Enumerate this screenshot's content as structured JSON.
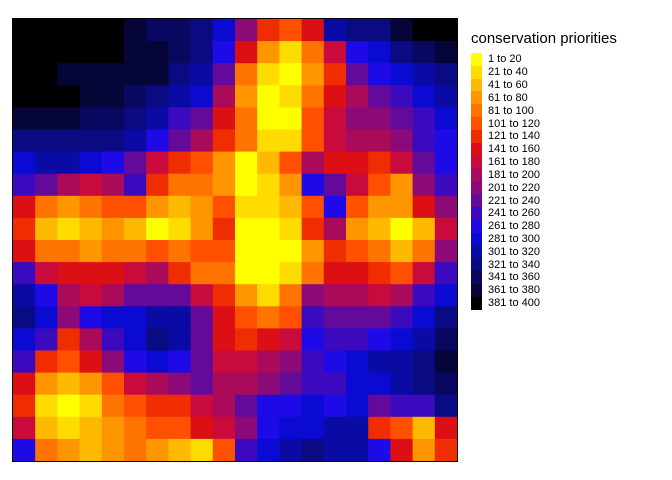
{
  "chart_data": {
    "type": "heatmap",
    "title": "",
    "xlabel": "",
    "ylabel": "",
    "grid": false,
    "legend_position": "right",
    "legend": {
      "title": "conservation priorities",
      "entries": [
        {
          "label": "1 to 20",
          "color": "#ffff00"
        },
        {
          "label": "21 to 40",
          "color": "#ffdc00"
        },
        {
          "label": "41 to 60",
          "color": "#ffb900"
        },
        {
          "label": "61 to 80",
          "color": "#ff9600"
        },
        {
          "label": "81 to 100",
          "color": "#ff7300"
        },
        {
          "label": "101 to 120",
          "color": "#ff5000"
        },
        {
          "label": "121 to 140",
          "color": "#f02d00"
        },
        {
          "label": "141 to 160",
          "color": "#dc0f14"
        },
        {
          "label": "161 to 180",
          "color": "#c80a3c"
        },
        {
          "label": "181 to 200",
          "color": "#aa0a5a"
        },
        {
          "label": "201 to 220",
          "color": "#8c0a78"
        },
        {
          "label": "221 to 240",
          "color": "#640a9b"
        },
        {
          "label": "241 to 260",
          "color": "#3c0abe"
        },
        {
          "label": "261 to 280",
          "color": "#1e0ae6"
        },
        {
          "label": "281 to 300",
          "color": "#0a0ad2"
        },
        {
          "label": "301 to 320",
          "color": "#0a0aa5"
        },
        {
          "label": "321 to 340",
          "color": "#0a0a82"
        },
        {
          "label": "341 to 360",
          "color": "#080860"
        },
        {
          "label": "361 to 380",
          "color": "#050538"
        },
        {
          "label": "381 to 400",
          "color": "#000000"
        }
      ]
    },
    "rows": 20,
    "cols": 20,
    "values": [
      [
        20,
        20,
        20,
        20,
        20,
        19,
        18,
        18,
        17,
        15,
        11,
        7,
        6,
        8,
        16,
        17,
        17,
        19,
        20,
        20
      ],
      [
        20,
        20,
        20,
        20,
        20,
        19,
        19,
        18,
        17,
        14,
        8,
        4,
        2,
        5,
        9,
        14,
        15,
        17,
        18,
        19
      ],
      [
        20,
        20,
        19,
        19,
        19,
        19,
        19,
        17,
        16,
        12,
        5,
        2,
        1,
        4,
        7,
        12,
        14,
        15,
        16,
        17
      ],
      [
        20,
        20,
        20,
        19,
        19,
        18,
        17,
        16,
        15,
        10,
        4,
        1,
        2,
        5,
        8,
        10,
        12,
        13,
        15,
        16
      ],
      [
        19,
        19,
        19,
        18,
        18,
        17,
        16,
        13,
        12,
        8,
        5,
        1,
        1,
        6,
        9,
        11,
        11,
        12,
        13,
        15
      ],
      [
        17,
        17,
        17,
        17,
        17,
        16,
        14,
        12,
        10,
        7,
        5,
        2,
        2,
        6,
        9,
        10,
        10,
        11,
        13,
        14
      ],
      [
        15,
        16,
        16,
        15,
        14,
        12,
        9,
        7,
        6,
        4,
        1,
        3,
        6,
        10,
        8,
        8,
        7,
        9,
        12,
        14
      ],
      [
        13,
        12,
        10,
        9,
        10,
        13,
        7,
        5,
        5,
        4,
        1,
        2,
        4,
        14,
        12,
        9,
        6,
        4,
        11,
        13
      ],
      [
        8,
        5,
        4,
        5,
        6,
        6,
        4,
        3,
        4,
        6,
        2,
        2,
        3,
        6,
        14,
        6,
        4,
        4,
        8,
        11
      ],
      [
        7,
        3,
        2,
        3,
        4,
        3,
        1,
        2,
        4,
        7,
        1,
        1,
        2,
        7,
        10,
        4,
        3,
        1,
        3,
        9
      ],
      [
        8,
        5,
        5,
        4,
        5,
        5,
        6,
        5,
        6,
        6,
        1,
        1,
        1,
        4,
        7,
        6,
        5,
        3,
        5,
        11
      ],
      [
        13,
        9,
        8,
        8,
        8,
        9,
        10,
        7,
        5,
        5,
        1,
        1,
        2,
        5,
        8,
        8,
        7,
        6,
        9,
        13
      ],
      [
        16,
        14,
        10,
        9,
        10,
        12,
        12,
        12,
        9,
        7,
        4,
        2,
        5,
        11,
        10,
        10,
        9,
        10,
        13,
        15
      ],
      [
        17,
        15,
        11,
        14,
        15,
        15,
        16,
        16,
        12,
        8,
        6,
        5,
        6,
        13,
        12,
        12,
        12,
        13,
        15,
        17
      ],
      [
        15,
        13,
        7,
        10,
        13,
        15,
        17,
        16,
        12,
        8,
        7,
        8,
        9,
        14,
        13,
        13,
        14,
        15,
        16,
        18
      ],
      [
        13,
        7,
        6,
        8,
        11,
        14,
        15,
        14,
        12,
        9,
        9,
        10,
        11,
        13,
        14,
        15,
        16,
        16,
        17,
        19
      ],
      [
        8,
        4,
        3,
        4,
        6,
        9,
        10,
        11,
        12,
        10,
        10,
        11,
        12,
        13,
        13,
        15,
        15,
        16,
        17,
        18
      ],
      [
        7,
        2,
        1,
        2,
        5,
        6,
        7,
        7,
        9,
        10,
        12,
        14,
        14,
        15,
        14,
        15,
        12,
        13,
        13,
        17
      ],
      [
        9,
        3,
        2,
        3,
        4,
        5,
        6,
        6,
        8,
        9,
        11,
        14,
        15,
        15,
        16,
        16,
        7,
        6,
        3,
        8
      ],
      [
        14,
        5,
        4,
        3,
        4,
        5,
        4,
        3,
        2,
        6,
        13,
        15,
        16,
        17,
        16,
        16,
        14,
        8,
        4,
        7
      ]
    ]
  }
}
